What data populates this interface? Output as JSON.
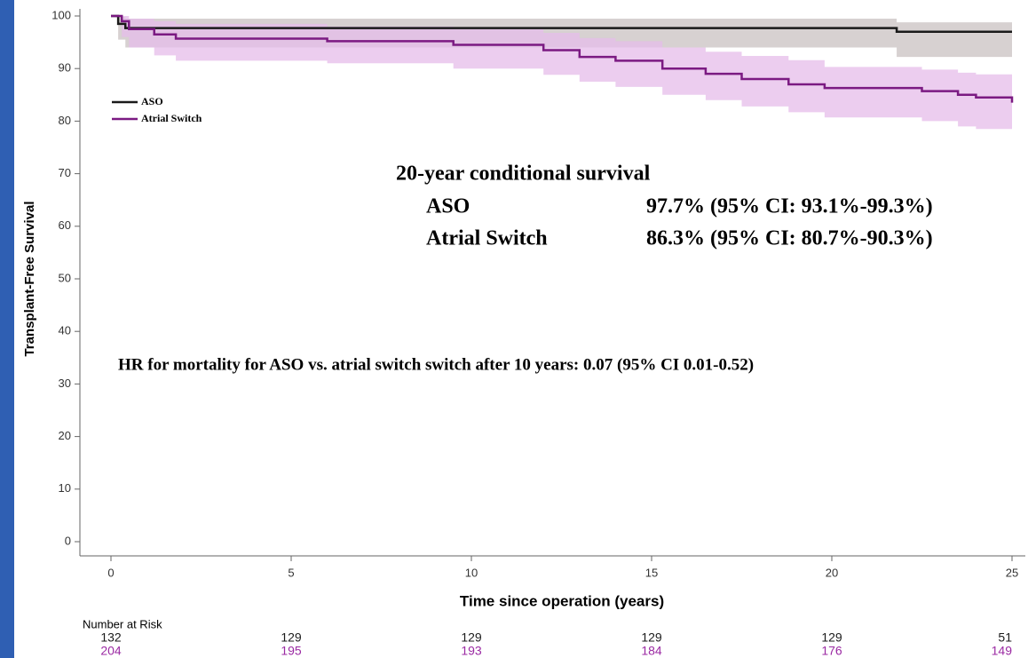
{
  "chart_data": {
    "type": "line",
    "step": true,
    "ylabel": "Transplant-Free Survival",
    "xlabel": "Time since operation (years)",
    "xlim": [
      0,
      25
    ],
    "xticks": [
      0,
      5,
      10,
      15,
      20,
      25
    ],
    "ylim": [
      0,
      100
    ],
    "yticks": [
      0,
      10,
      20,
      30,
      40,
      50,
      60,
      70,
      80,
      90,
      100
    ],
    "legend": "upper left",
    "series": [
      {
        "name": "ASO",
        "color": "#1a1a1a",
        "band_color": "#c9c1c1",
        "x": [
          0,
          0.2,
          0.4,
          21.8,
          25
        ],
        "values": [
          100,
          98.5,
          97.7,
          97,
          97
        ],
        "ci_lower": [
          100,
          95.5,
          94,
          92.2,
          92.2
        ],
        "ci_upper": [
          100,
          99.8,
          99.5,
          98.8,
          98.8
        ]
      },
      {
        "name": "Atrial Switch",
        "color": "#7b1a82",
        "band_color": "#e6bce9",
        "x": [
          0,
          0.3,
          0.5,
          1.2,
          1.8,
          6,
          9.5,
          12,
          13,
          14,
          15.3,
          16.5,
          17.5,
          18.8,
          19.8,
          22.5,
          23.5,
          24,
          25
        ],
        "values": [
          100,
          99,
          97.5,
          96.5,
          95.7,
          95.2,
          94.5,
          93.5,
          92.2,
          91.5,
          90,
          89,
          88,
          87,
          86.3,
          85.7,
          85,
          84.5,
          83.5
        ],
        "ci_lower": [
          100,
          96,
          94,
          92.5,
          91.5,
          91,
          90,
          88.8,
          87.5,
          86.5,
          85,
          84,
          82.8,
          81.7,
          80.7,
          80,
          79,
          78.5,
          77.5
        ],
        "ci_upper": [
          100,
          100,
          99.5,
          99,
          98.5,
          98,
          97.5,
          96.8,
          95.8,
          95.2,
          94,
          93.2,
          92.4,
          91.6,
          90.3,
          89.8,
          89.2,
          88.9,
          88.2
        ]
      }
    ],
    "annotations": {
      "title": "20-year conditional survival",
      "rows": [
        [
          "ASO",
          "97.7% (95% CI: 93.1%-99.3%)"
        ],
        [
          "Atrial Switch",
          "86.3% (95% CI: 80.7%-90.3%)"
        ]
      ],
      "hr": "HR for mortality for ASO vs. atrial switch switch after 10 years: 0.07 (95% CI 0.01-0.52)"
    },
    "risk_table": {
      "title": "Number at Risk",
      "x": [
        0,
        5,
        10,
        15,
        20,
        25
      ],
      "rows": [
        {
          "color": "#1a1a1a",
          "values": [
            132,
            129,
            129,
            129,
            129,
            51
          ]
        },
        {
          "color": "#9b2aa3",
          "values": [
            204,
            195,
            193,
            184,
            176,
            149
          ]
        }
      ]
    }
  }
}
